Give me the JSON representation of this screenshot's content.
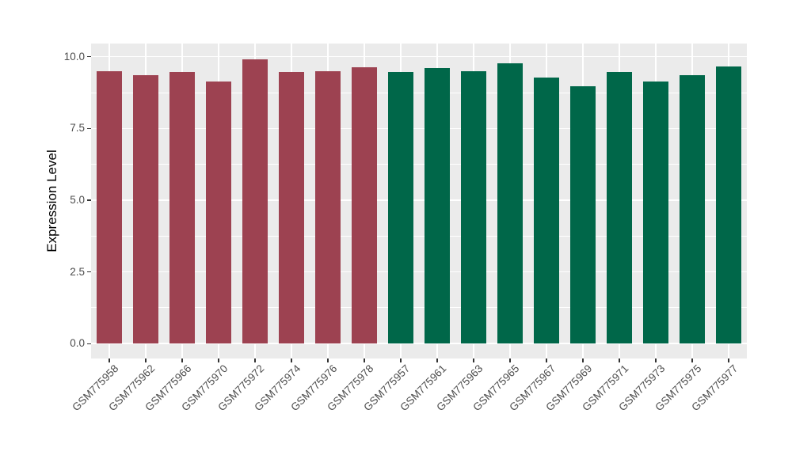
{
  "chart_data": {
    "type": "bar",
    "title": "",
    "xlabel": "",
    "ylabel": "Expression Level",
    "categories": [
      "GSM775958",
      "GSM775962",
      "GSM775966",
      "GSM775970",
      "GSM775972",
      "GSM775974",
      "GSM775976",
      "GSM775978",
      "GSM775957",
      "GSM775961",
      "GSM775963",
      "GSM775965",
      "GSM775967",
      "GSM775969",
      "GSM775971",
      "GSM775973",
      "GSM775975",
      "GSM775977"
    ],
    "values": [
      9.5,
      9.37,
      9.46,
      9.14,
      9.92,
      9.47,
      9.5,
      9.62,
      9.47,
      9.6,
      9.5,
      9.78,
      9.27,
      8.97,
      9.48,
      9.14,
      9.36,
      9.66
    ],
    "bar_groups": [
      "red",
      "red",
      "red",
      "red",
      "red",
      "red",
      "red",
      "red",
      "green",
      "green",
      "green",
      "green",
      "green",
      "green",
      "green",
      "green",
      "green",
      "green"
    ],
    "group_colors": {
      "red": "#9D4251",
      "green": "#006749"
    },
    "yticks": [
      0,
      2.5,
      5.0,
      7.5,
      10.0
    ],
    "ytick_labels": [
      "0.0",
      "2.5",
      "5.0",
      "7.5",
      "10.0"
    ],
    "y_minor_ticks": [
      1.25,
      3.75,
      6.25,
      8.75
    ],
    "ylim": [
      0,
      10
    ],
    "panel_range": [
      -0.52,
      10.46
    ],
    "grid": "on",
    "legend": "none",
    "panel_bg": "#EBEBEB",
    "grid_color": "#FFFFFF",
    "tick_color": "#333333",
    "tick_label_color": "#4D4D4D"
  }
}
